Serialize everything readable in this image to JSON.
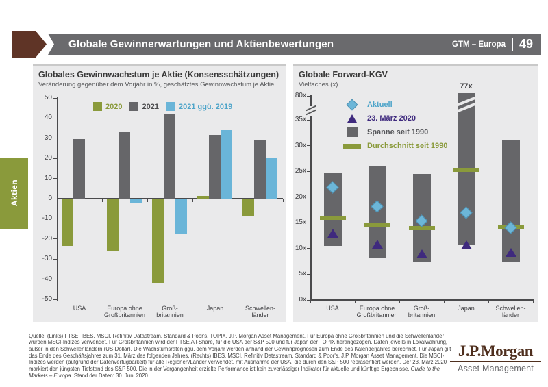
{
  "header": {
    "title": "Globale Gewinnerwartungen und Aktienbewertungen",
    "program": "GTM – Europa",
    "page_number": "49"
  },
  "side_tab": {
    "label": "Aktien"
  },
  "chart_data": [
    {
      "type": "bar",
      "title": "Globales Gewinnwachstum je Aktie (Konsensschätzungen)",
      "subtitle": "Veränderung gegenüber dem Vorjahr in %, geschätztes Gewinnwachstum je Aktie",
      "categories": [
        [
          "USA"
        ],
        [
          "Europa ohne",
          "Großbritannien"
        ],
        [
          "Groß-",
          "britannien"
        ],
        [
          "Japan"
        ],
        [
          "Schwellen-",
          "länder"
        ]
      ],
      "yticks": [
        50,
        40,
        30,
        20,
        10,
        0,
        -10,
        -20,
        -30,
        -40,
        -50
      ],
      "ylim": [
        -50,
        50
      ],
      "grid": false,
      "legend_position": "top",
      "series": [
        {
          "name": "2020",
          "color": "#8a9a3b",
          "label_color": "#8a9a3b",
          "values": [
            -23,
            -26,
            -41.5,
            1.5,
            -8
          ]
        },
        {
          "name": "2021",
          "color": "#666669",
          "label_color": "#4a4a4c",
          "values": [
            29.5,
            33,
            42,
            31.5,
            29
          ]
        },
        {
          "name": "2021 ggü. 2019",
          "color": "#6ab5d8",
          "label_color": "#4da4c9",
          "values": [
            0,
            -2,
            -17,
            34,
            20
          ]
        }
      ]
    },
    {
      "type": "range-bar",
      "title": "Globale Forward-KGV",
      "subtitle": "Vielfaches (x)",
      "categories": [
        [
          "USA"
        ],
        [
          "Europa ohne",
          "Großbritannien"
        ],
        [
          "Groß-",
          "britannien"
        ],
        [
          "Japan"
        ],
        [
          "Schwellen-",
          "länder"
        ]
      ],
      "yticks": [
        {
          "label": "80x",
          "value": 80
        },
        {
          "label": "35x",
          "value": 35
        },
        {
          "label": "30x",
          "value": 30
        },
        {
          "label": "25x",
          "value": 25
        },
        {
          "label": "20x",
          "value": 20
        },
        {
          "label": "15x",
          "value": 15
        },
        {
          "label": "10x",
          "value": 10
        },
        {
          "label": "5x",
          "value": 5
        },
        {
          "label": "0x",
          "value": 0
        }
      ],
      "axis_break": true,
      "colors": {
        "range": "#666669",
        "average": "#8a9a3b",
        "current": "#6cb6d8",
        "march": "#3f2a7e"
      },
      "legend": [
        {
          "marker": "diamond",
          "label": "Aktuell",
          "label_color": "#4da4c9"
        },
        {
          "marker": "triangle",
          "label": "23. März 2020",
          "label_color": "#3f2a7e"
        },
        {
          "marker": "square",
          "label": "Spanne seit 1990",
          "label_color": "#55565a"
        },
        {
          "marker": "bar",
          "label": "Durchschnitt seit 1990",
          "label_color": "#8a9a3b"
        }
      ],
      "points": [
        {
          "category": "USA",
          "range_low": 10.5,
          "range_high": 24.8,
          "average": 16,
          "current": 21.9,
          "march_23_2020": 13
        },
        {
          "category": "Europa ohne Großbritannien",
          "range_low": 8.2,
          "range_high": 26,
          "average": 14.5,
          "current": 18.2,
          "march_23_2020": 10.8
        },
        {
          "category": "Großbritannien",
          "range_low": 7.5,
          "range_high": 24.5,
          "average": 14,
          "current": 15.4,
          "march_23_2020": 9
        },
        {
          "category": "Japan",
          "range_low": 10.6,
          "range_high": 77,
          "average": 25.3,
          "current": 17,
          "march_23_2020": 10.7,
          "broken": true,
          "high_label": "77x"
        },
        {
          "category": "Schwellenländer",
          "range_low": 7.5,
          "range_high": 31,
          "average": 14.2,
          "current": 14,
          "march_23_2020": 9.3
        }
      ]
    }
  ],
  "footer": {
    "text_before": "Quelle: (Links) FTSE, IBES, MSCI, Refinitiv Datastream, Standard & Poor's, TOPIX, J.P. Morgan Asset Management. Für Europa ohne Großbritannien und die Schwellenländer wurden MSCI-Indizes verwendet. Für Großbritannien wird der FTSE All-Share, für die USA der S&P 500 und für Japan der TOPIX herangezogen. Daten jeweils in Lokalwährung, außer in den Schwellenländern (US-Dollar). Die Wachstumsraten ggü. dem Vorjahr werden anhand der Gewinnprognosen zum Ende des Kalenderjahres berechnet. Für Japan gilt das Ende des Geschäftsjahres zum 31. März des folgenden Jahres. (Rechts) IBES, MSCI, Refinitiv Datastream, Standard & Poor's, J.P. Morgan Asset Management. Die MSCI-Indizes werden (aufgrund der Datenverfügbarkeit) für alle Regionen/Länder verwendet, mit Ausnahme der USA, die durch den S&P 500 repräsentiert werden. Der 23. März 2020 markiert den jüngsten Tiefstand des S&P 500. Die in der Vergangenheit erzielte Performance ist kein zuverlässiger Indikator für aktuelle und künftige Ergebnisse. ",
    "text_italic": "Guide to the Markets – Europa.",
    "text_after": " Stand der Daten: 30. Juni 2020."
  },
  "logo": {
    "name": "J.P.Morgan",
    "subtitle": "Asset Management"
  }
}
